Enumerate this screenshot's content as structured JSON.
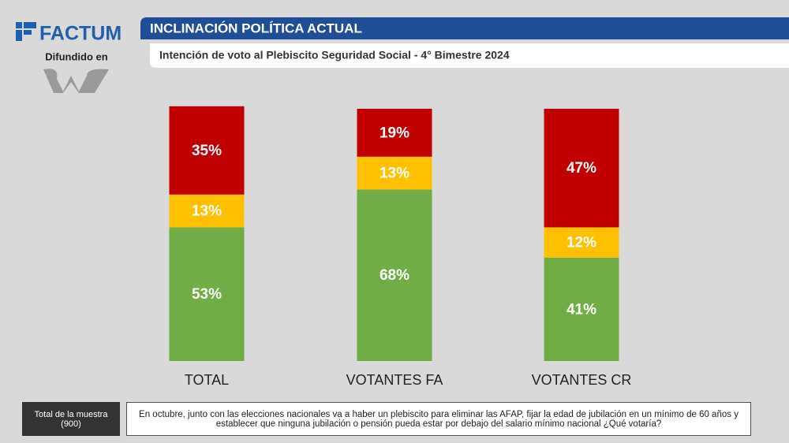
{
  "logo": "FACTUM",
  "sponsor_label": "Difundido en",
  "chart_data": {
    "type": "stacked-bar",
    "title": "INCLINACIÓN POLÍTICA ACTUAL",
    "subtitle": "Intención de voto al Plebiscito Seguridad Social - 4° Bimestre 2024",
    "categories": [
      "TOTAL",
      "VOTANTES FA",
      "VOTANTES CR"
    ],
    "series": [
      {
        "color": "#70ad47",
        "values": [
          53,
          68,
          41
        ],
        "value_labels": [
          "53%",
          "68%",
          "41%"
        ]
      },
      {
        "color": "#ffc000",
        "values": [
          13,
          13,
          12
        ],
        "value_labels": [
          "13%",
          "13%",
          "12%"
        ]
      },
      {
        "color": "#c00000",
        "values": [
          35,
          19,
          47
        ],
        "value_labels": [
          "35%",
          "19%",
          "47%"
        ]
      }
    ]
  },
  "footer": {
    "sample_label": "Total de la muestra",
    "sample_size": "(900)",
    "question": "En octubre, junto con las elecciones nacionales va a haber un plebiscito para eliminar las AFAP, fijar la edad de jubilación en un mínimo de 60 años y establecer que ninguna jubilación o pensión pueda estar por debajo del salario mínimo nacional ¿Qué votaría?"
  }
}
